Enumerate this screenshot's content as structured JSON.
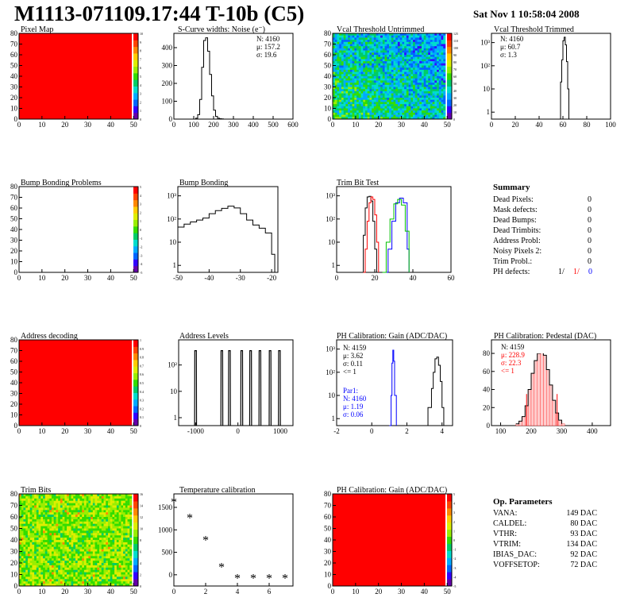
{
  "header": {
    "title": "M1113-071109.17:44 T-10b (C5)",
    "date": "Sat Nov  1 10:58:04 2008"
  },
  "chart_data": [
    {
      "id": "pixel-map",
      "type": "heatmap",
      "title": "Pixel Map",
      "xlim": [
        0,
        52
      ],
      "ylim": [
        0,
        80
      ],
      "xticks": [
        0,
        10,
        20,
        30,
        40,
        50
      ],
      "yticks": [
        0,
        10,
        20,
        30,
        40,
        50,
        60,
        70,
        80
      ],
      "mode": "uniform",
      "color": "#ff0000",
      "colorbar": {
        "min": 0,
        "max": 10,
        "labels": [
          "0",
          "1",
          "2",
          "3",
          "4",
          "5",
          "6",
          "7",
          "8",
          "9",
          "10"
        ]
      }
    },
    {
      "id": "noise",
      "type": "line",
      "title": "S-Curve widths: Noise (e⁻)",
      "xlim": [
        0,
        600
      ],
      "ylim": [
        0,
        480
      ],
      "xticks": [
        0,
        100,
        200,
        300,
        400,
        500,
        600
      ],
      "yticks": [
        0,
        100,
        200,
        300,
        400
      ],
      "stats": [
        "N: 4160",
        "μ: 157.2",
        "σ: 19.6"
      ],
      "series": [
        {
          "color": "#000000",
          "x": [
            100,
            110,
            120,
            130,
            140,
            150,
            160,
            170,
            180,
            190,
            200,
            210,
            220,
            230,
            240,
            250
          ],
          "y": [
            0,
            5,
            25,
            110,
            290,
            440,
            455,
            380,
            250,
            130,
            50,
            15,
            5,
            2,
            1,
            0
          ]
        }
      ]
    },
    {
      "id": "vcal-untrimmed",
      "type": "heatmap",
      "title": "Vcal Threshold Untrimmed",
      "xlim": [
        0,
        52
      ],
      "ylim": [
        0,
        80
      ],
      "xticks": [
        0,
        10,
        20,
        30,
        40,
        50
      ],
      "yticks": [
        0,
        10,
        20,
        30,
        40,
        50,
        60,
        70,
        80
      ],
      "mode": "noise",
      "colorbar": {
        "min": 0,
        "max": 125,
        "labels": [
          "0",
          "10",
          "20",
          "30",
          "40",
          "50",
          "60",
          "70",
          "80",
          "90",
          "100",
          "110",
          "125"
        ]
      }
    },
    {
      "id": "vcal-trimmed",
      "type": "line",
      "title": "Vcal Threshold Trimmed",
      "ylog": true,
      "xlim": [
        0,
        100
      ],
      "ylim": [
        0.5,
        2500
      ],
      "xticks": [
        0,
        20,
        40,
        60,
        80,
        100
      ],
      "yticks": [
        1,
        10,
        100,
        1000
      ],
      "ytickLabels": [
        "1",
        "10",
        "10²",
        "10³"
      ],
      "stats": [
        "N: 4160",
        "μ: 60.7",
        "σ:  1.3"
      ],
      "series": [
        {
          "color": "#000000",
          "x": [
            57,
            58,
            59,
            60,
            61,
            62,
            63,
            64,
            65
          ],
          "y": [
            0,
            20,
            180,
            1200,
            1700,
            800,
            150,
            10,
            0
          ]
        }
      ]
    },
    {
      "id": "bump-problems",
      "type": "heatmap",
      "title": "Bump Bonding Problems",
      "xlim": [
        0,
        52
      ],
      "ylim": [
        0,
        80
      ],
      "xticks": [
        0,
        10,
        20,
        30,
        40,
        50
      ],
      "yticks": [
        0,
        10,
        20,
        30,
        40,
        50,
        60,
        70,
        80
      ],
      "mode": "empty",
      "colorbar": {
        "min": -5,
        "max": 5,
        "labels": [
          "-5",
          "-4",
          "-3",
          "-2",
          "-1",
          "0",
          "1",
          "2",
          "3",
          "4",
          "5"
        ]
      }
    },
    {
      "id": "bump-bonding",
      "type": "line",
      "title": "Bump Bonding",
      "ylog": true,
      "xlim": [
        -50,
        -18
      ],
      "ylim": [
        0.5,
        2500
      ],
      "xticks": [
        -50,
        -40,
        -30,
        -20
      ],
      "yticks": [
        1,
        10,
        100,
        1000
      ],
      "ytickLabels": [
        "1",
        "10",
        "10²",
        "10³"
      ],
      "series": [
        {
          "color": "#000000",
          "x": [
            -50,
            -48,
            -46,
            -44,
            -42,
            -40,
            -38,
            -36,
            -34,
            -32,
            -30,
            -28,
            -26,
            -24,
            -22,
            -20,
            -19
          ],
          "y": [
            45,
            60,
            75,
            90,
            110,
            170,
            230,
            290,
            360,
            300,
            170,
            90,
            55,
            40,
            25,
            3,
            0.5
          ]
        }
      ]
    },
    {
      "id": "trim-bit-test",
      "type": "line",
      "title": "Trim Bit Test",
      "ylog": true,
      "xlim": [
        0,
        60
      ],
      "ylim": [
        0.5,
        2500
      ],
      "xticks": [
        0,
        20,
        40,
        60
      ],
      "yticks": [
        1,
        10,
        100,
        1000
      ],
      "ytickLabels": [
        "1",
        "10",
        "10²",
        "10³"
      ],
      "series": [
        {
          "color": "#000000",
          "x": [
            13,
            14,
            15,
            16,
            17,
            18,
            19,
            20,
            21
          ],
          "y": [
            0.5,
            20,
            300,
            900,
            950,
            600,
            80,
            5,
            0.5
          ]
        },
        {
          "color": "#ff0000",
          "x": [
            14,
            15,
            16,
            17,
            18,
            19,
            20,
            21,
            22
          ],
          "y": [
            0.5,
            5,
            80,
            500,
            900,
            700,
            150,
            10,
            0.5
          ]
        },
        {
          "color": "#0000ff",
          "x": [
            25,
            27,
            29,
            31,
            33,
            35,
            37,
            38
          ],
          "y": [
            0.5,
            5,
            80,
            500,
            800,
            500,
            5,
            0.5
          ]
        },
        {
          "color": "#00c000",
          "x": [
            24,
            26,
            28,
            30,
            32,
            34,
            36,
            38
          ],
          "y": [
            0.5,
            10,
            100,
            450,
            700,
            400,
            30,
            0.5
          ]
        }
      ]
    },
    {
      "id": "address-decoding",
      "type": "heatmap",
      "title": "Address decoding",
      "xlim": [
        0,
        52
      ],
      "ylim": [
        0,
        80
      ],
      "xticks": [
        0,
        10,
        20,
        30,
        40,
        50
      ],
      "yticks": [
        0,
        10,
        20,
        30,
        40,
        50,
        60,
        70,
        80
      ],
      "mode": "uniform",
      "color": "#ff0000",
      "colorbar": {
        "min": 0,
        "max": 1,
        "labels": [
          "0",
          "0.1",
          "0.2",
          "0.3",
          "0.4",
          "0.5",
          "0.6",
          "0.7",
          "0.8",
          "0.9",
          "1"
        ]
      }
    },
    {
      "id": "address-levels",
      "type": "line",
      "title": "Address Levels",
      "ylog": true,
      "xlim": [
        -1400,
        1300
      ],
      "ylim": [
        0.5,
        900
      ],
      "xticks": [
        -1000,
        0,
        1000
      ],
      "yticks": [
        1,
        10,
        100
      ],
      "ytickLabels": [
        "1",
        "10",
        "10²"
      ],
      "peaks": [
        -1000,
        -380,
        -200,
        90,
        300,
        520,
        760,
        980
      ],
      "peakHeight": 350,
      "peakWidth": 45
    },
    {
      "id": "ph-gain",
      "type": "line",
      "title": "PH Calibration: Gain (ADC/DAC)",
      "ylog": true,
      "xlim": [
        -2,
        4.6
      ],
      "ylim": [
        0.5,
        2500
      ],
      "xticks": [
        -2,
        0,
        2,
        4
      ],
      "yticks": [
        1,
        10,
        100,
        1000
      ],
      "ytickLabels": [
        "1",
        "10",
        "10²",
        "10³"
      ],
      "stats": [
        "N: 4159",
        "μ: 3.62",
        "σ: 0.11",
        "<= 1"
      ],
      "stats2": [
        "Par1:",
        "N: 4160",
        "μ: 1.19",
        "σ: 0.06"
      ],
      "series": [
        {
          "color": "#000000",
          "x": [
            3.0,
            3.2,
            3.4,
            3.5,
            3.6,
            3.7,
            3.8,
            3.9,
            4.0,
            4.1
          ],
          "y": [
            0.5,
            3,
            20,
            100,
            380,
            450,
            200,
            40,
            3,
            0.5
          ]
        },
        {
          "color": "#0000ff",
          "x": [
            1.0,
            1.1,
            1.15,
            1.2,
            1.25,
            1.3,
            1.4
          ],
          "y": [
            0.5,
            10,
            250,
            900,
            300,
            10,
            0.5
          ]
        }
      ]
    },
    {
      "id": "ph-pedestal",
      "type": "bar",
      "title": "PH Calibration: Pedestal (DAC)",
      "xlim": [
        70,
        460
      ],
      "ylim": [
        0,
        95
      ],
      "xticks": [
        100,
        200,
        300,
        400
      ],
      "yticks": [
        0,
        20,
        40,
        60,
        80
      ],
      "stats": [
        "N: 4159"
      ],
      "stats_red": [
        "μ: 228.9",
        "σ: 22.3",
        "<= 1"
      ],
      "series": [
        {
          "color": "#000000",
          "x": [
            150,
            160,
            170,
            180,
            190,
            200,
            210,
            220,
            230,
            240,
            250,
            260,
            270,
            280,
            290,
            300
          ],
          "y": [
            2,
            5,
            10,
            22,
            40,
            58,
            72,
            80,
            84,
            78,
            62,
            45,
            28,
            14,
            6,
            2
          ]
        }
      ],
      "markers": [
        185,
        285
      ]
    },
    {
      "id": "trim-bits",
      "type": "heatmap",
      "title": "Trim Bits",
      "xlim": [
        0,
        52
      ],
      "ylim": [
        0,
        80
      ],
      "xticks": [
        0,
        10,
        20,
        30,
        40,
        50
      ],
      "yticks": [
        0,
        10,
        20,
        30,
        40,
        50,
        60,
        70,
        80
      ],
      "mode": "noise-green",
      "colorbar": {
        "min": 0,
        "max": 16,
        "labels": [
          "0",
          "2",
          "4",
          "6",
          "8",
          "10",
          "12",
          "14",
          "16"
        ]
      }
    },
    {
      "id": "temperature",
      "type": "scatter",
      "title": "Temperature calibration",
      "xlim": [
        0,
        7.5
      ],
      "ylim": [
        -250,
        1800
      ],
      "xticks": [
        0,
        2,
        4,
        6
      ],
      "yticks": [
        0,
        500,
        1000,
        1500
      ],
      "series": [
        {
          "color": "#000000",
          "x": [
            0,
            1,
            2,
            3,
            4,
            5,
            6,
            7
          ],
          "y": [
            1650,
            1300,
            800,
            200,
            -50,
            -50,
            -50,
            -50
          ]
        }
      ]
    },
    {
      "id": "ph-gain-map",
      "type": "heatmap",
      "title": "PH Calibration: Gain (ADC/DAC)",
      "xlim": [
        0,
        52
      ],
      "ylim": [
        0,
        80
      ],
      "xticks": [
        0,
        10,
        20,
        30,
        40,
        50
      ],
      "yticks": [
        0,
        10,
        20,
        30,
        40,
        50,
        60,
        70,
        80
      ],
      "mode": "uniform",
      "color": "#ff0000",
      "colorbar": {
        "min": -5,
        "max": 5,
        "labels": [
          "-5",
          "-4",
          "-3",
          "-2",
          "-1",
          "0",
          "1",
          "2",
          "3",
          "4",
          "5"
        ]
      }
    }
  ],
  "summary": {
    "title": "Summary",
    "rows": [
      {
        "label": "Dead Pixels:",
        "value": "0"
      },
      {
        "label": "Mask defects:",
        "value": "0"
      },
      {
        "label": "Dead Bumps:",
        "value": "0"
      },
      {
        "label": "Dead Trimbits:",
        "value": "0"
      },
      {
        "label": "Address Probl:",
        "value": "0"
      },
      {
        "label": "Noisy Pixels 2:",
        "value": "0"
      },
      {
        "label": "Trim Probl.:",
        "value": "0"
      }
    ],
    "ph_label": "PH defects:",
    "ph_values": [
      "1/",
      "1/",
      "0"
    ],
    "ph_colors": [
      "#000000",
      "#ff0000",
      "#0000ff"
    ]
  },
  "op_params": {
    "title": "Op. Parameters",
    "rows": [
      {
        "label": "VANA:",
        "value": "149 DAC"
      },
      {
        "label": "CALDEL:",
        "value": "80 DAC"
      },
      {
        "label": "VTHR:",
        "value": "93 DAC"
      },
      {
        "label": "VTRIM:",
        "value": "134 DAC"
      },
      {
        "label": "IBIAS_DAC:",
        "value": "92 DAC"
      },
      {
        "label": "VOFFSETOP:",
        "value": "72 DAC"
      }
    ]
  }
}
